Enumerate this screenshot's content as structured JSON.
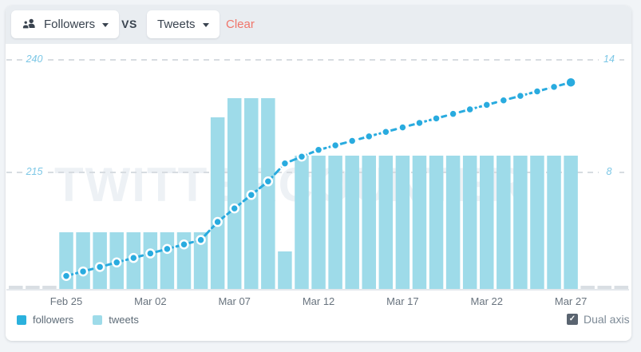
{
  "header": {
    "metric_a": {
      "label": "Followers",
      "icon": "people-icon"
    },
    "vs_label": "VS",
    "metric_b": {
      "label": "Tweets"
    },
    "clear_label": "Clear"
  },
  "watermark": "TWITTERCOUNTER",
  "legend": {
    "items": [
      {
        "label": "followers",
        "color": "#2bb1dd"
      },
      {
        "label": "tweets",
        "color": "#9edbe9"
      }
    ]
  },
  "dual_axis": {
    "label": "Dual axis",
    "checked": true
  },
  "chart_data": {
    "type": "bar",
    "subtype": "dual-axis bar + dashed line with markers",
    "x": [
      "Feb 25",
      "Feb 26",
      "Feb 27",
      "Feb 28",
      "Mar 01",
      "Mar 02",
      "Mar 03",
      "Mar 04",
      "Mar 05",
      "Mar 06",
      "Mar 07",
      "Mar 08",
      "Mar 09",
      "Mar 10",
      "Mar 11",
      "Mar 12",
      "Mar 13",
      "Mar 14",
      "Mar 15",
      "Mar 16",
      "Mar 17",
      "Mar 18",
      "Mar 19",
      "Mar 20",
      "Mar 21",
      "Mar 22",
      "Mar 23",
      "Mar 24",
      "Mar 25",
      "Mar 26",
      "Mar 27"
    ],
    "x_tick_labels": [
      "Feb 25",
      "Mar 02",
      "Mar 07",
      "Mar 12",
      "Mar 17",
      "Mar 22",
      "Mar 27"
    ],
    "series": [
      {
        "name": "followers",
        "type": "line",
        "axis": "left",
        "color": "#29abdf",
        "values": [
          192,
          193,
          194,
          195,
          196,
          197,
          198,
          199,
          200,
          204,
          207,
          210,
          213,
          217,
          218.5,
          220,
          221,
          222,
          223,
          224,
          225,
          226,
          227,
          228,
          229,
          230,
          231,
          232,
          233,
          234,
          235
        ]
      },
      {
        "name": "tweets",
        "type": "bar",
        "axis": "right",
        "color": "#9edbe9",
        "values": [
          5,
          5,
          5,
          5,
          5,
          5,
          5,
          5,
          5,
          11,
          12,
          12,
          12,
          4,
          9,
          9,
          9,
          9,
          9,
          9,
          9,
          9,
          9,
          9,
          9,
          9,
          9,
          9,
          9,
          9,
          9
        ]
      }
    ],
    "y_axis_left": {
      "ticks": [
        240,
        215
      ]
    },
    "y_axis_right": {
      "ticks": [
        14,
        8
      ]
    },
    "grid": "dashed horizontal gridlines at tick values",
    "legend_position": "bottom-left",
    "clipped_edge_bars": {
      "left": 3,
      "right": 3,
      "color": "#d9dee3"
    }
  }
}
